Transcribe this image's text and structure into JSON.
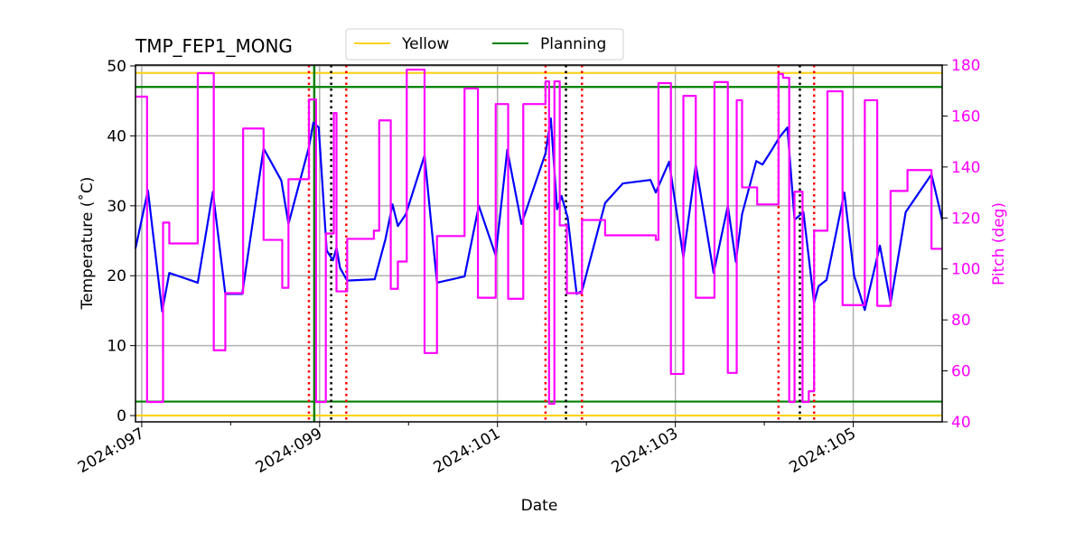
{
  "chart_data": {
    "type": "line",
    "title": "TMP_FEP1_MONG",
    "xlabel": "Date",
    "ylabel": "Temperature ($^\\circ$C)",
    "ylabel_display": "Temperature (˚C)",
    "y2label": "Pitch (deg)",
    "xlim": [
      96.93,
      106.0
    ],
    "ylim": [
      -0.9,
      50.13
    ],
    "y2lim": [
      40,
      180
    ],
    "grid": true,
    "legend_position": "top-center",
    "x_ticks": [
      {
        "value": 97,
        "label": "2024:097"
      },
      {
        "value": 99,
        "label": "2024:099"
      },
      {
        "value": 101,
        "label": "2024:101"
      },
      {
        "value": 103,
        "label": "2024:103"
      },
      {
        "value": 105,
        "label": "2024:105"
      }
    ],
    "x_minor_ticks": [
      98,
      100,
      102,
      104
    ],
    "y_ticks": [
      0,
      10,
      20,
      30,
      40,
      50
    ],
    "y2_ticks": [
      40,
      60,
      80,
      100,
      120,
      140,
      160,
      180
    ],
    "colors": {
      "temperature": "#0000ff",
      "pitch": "#ff00ff",
      "yellow": "#ffd21f",
      "planning": "#008000",
      "red_event": "#ff0000",
      "black_event": "#000000",
      "grid": "#b0b0b0"
    },
    "limit_lines": [
      {
        "name": "Yellow",
        "values": [
          49,
          0
        ],
        "color": "#ffd21f"
      },
      {
        "name": "Planning",
        "values": [
          47,
          2
        ],
        "color": "#008000"
      }
    ],
    "legend": [
      {
        "label": "Yellow",
        "color": "#ffd21f"
      },
      {
        "label": "Planning",
        "color": "#008000"
      }
    ],
    "vlines": {
      "red_dotted": [
        98.88,
        99.3,
        101.54,
        101.95,
        104.16,
        104.56
      ],
      "black_dotted": [
        99.13,
        101.77,
        104.4
      ],
      "green_solid": [
        98.94
      ]
    },
    "series": [
      {
        "axis": "left",
        "color": "#0000ff",
        "x": [
          96.93,
          97.07,
          97.23,
          97.31,
          97.63,
          97.8,
          97.94,
          98.13,
          98.37,
          98.57,
          98.65,
          98.88,
          98.93,
          98.99,
          99.08,
          99.15,
          99.19,
          99.23,
          99.31,
          99.62,
          99.74,
          99.82,
          99.88,
          99.97,
          100.18,
          100.32,
          100.63,
          100.79,
          100.98,
          101.11,
          101.27,
          101.54,
          101.6,
          101.67,
          101.72,
          101.79,
          101.89,
          101.95,
          102.21,
          102.41,
          102.72,
          102.78,
          102.93,
          103.09,
          103.23,
          103.43,
          103.59,
          103.68,
          103.75,
          103.91,
          103.98,
          104.09,
          104.17,
          104.26,
          104.34,
          104.44,
          104.56,
          104.61,
          104.7,
          104.9,
          105.01,
          105.13,
          105.3,
          105.42,
          105.59,
          105.88,
          106.0
        ],
        "y": [
          23.9,
          32.2,
          14.9,
          20.4,
          19.0,
          32.0,
          17.4,
          17.4,
          38.2,
          33.6,
          27.4,
          38.4,
          41.9,
          41.2,
          23.6,
          22.2,
          24.0,
          21.1,
          19.3,
          19.5,
          25.2,
          30.2,
          27.1,
          28.8,
          37.2,
          19.0,
          19.9,
          30.0,
          22.9,
          38.0,
          27.4,
          37.5,
          42.5,
          29.5,
          31.4,
          28.3,
          17.4,
          17.8,
          30.4,
          33.2,
          33.7,
          31.9,
          36.3,
          22.6,
          35.9,
          20.4,
          30.0,
          22.0,
          28.8,
          36.4,
          35.9,
          38.1,
          39.8,
          41.2,
          28.0,
          29.1,
          16.1,
          18.5,
          19.4,
          31.9,
          20.0,
          15.1,
          24.3,
          16.1,
          29.1,
          34.5,
          28.0
        ]
      },
      {
        "axis": "right",
        "color": "#ff00ff",
        "step": true,
        "x": [
          96.93,
          97.06,
          97.24,
          97.31,
          97.63,
          97.81,
          97.94,
          98.14,
          98.37,
          98.58,
          98.65,
          98.88,
          98.96,
          99.07,
          99.16,
          99.19,
          99.31,
          99.61,
          99.67,
          99.8,
          99.88,
          99.98,
          100.18,
          100.32,
          100.63,
          100.78,
          100.98,
          101.12,
          101.29,
          101.54,
          101.58,
          101.64,
          101.7,
          101.78,
          101.95,
          102.21,
          102.78,
          102.81,
          102.95,
          103.09,
          103.23,
          103.44,
          103.59,
          103.69,
          103.75,
          103.92,
          104.16,
          104.21,
          104.28,
          104.34,
          104.43,
          104.5,
          104.56,
          104.71,
          104.88,
          105.13,
          105.27,
          105.42,
          105.61,
          105.88,
          106.0
        ],
        "y": [
          167.6,
          47.8,
          118.2,
          110.0,
          176.8,
          68.1,
          90.5,
          155.1,
          111.4,
          92.6,
          135.2,
          166.5,
          47.8,
          113.9,
          161.2,
          91.2,
          111.8,
          115.0,
          158.3,
          92.2,
          102.9,
          178.2,
          67.0,
          112.9,
          170.8,
          88.7,
          164.7,
          88.3,
          164.7,
          173.6,
          47.1,
          173.6,
          117.1,
          90.5,
          119.2,
          113.2,
          111.4,
          172.9,
          58.8,
          167.9,
          88.7,
          173.3,
          59.2,
          166.2,
          132.0,
          125.3,
          176.5,
          175.0,
          47.8,
          130.3,
          47.8,
          52.0,
          115.0,
          169.7,
          85.8,
          166.2,
          85.5,
          130.6,
          138.8,
          107.9,
          107.9
        ]
      }
    ]
  }
}
